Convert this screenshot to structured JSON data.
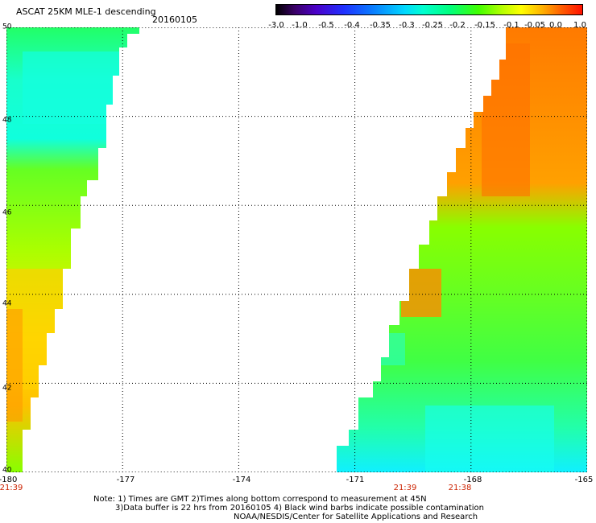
{
  "title": "ASCAT 25KM MLE-1 descending",
  "date": "20160105",
  "colorbar": {
    "ticks": [
      "-3.0",
      "-1.0",
      "-0.5",
      "-0.4",
      "-0.35",
      "-0.3",
      "-0.25",
      "-0.2",
      "-0.15",
      "-0.1",
      "-0.05",
      "0.0",
      "1.0"
    ],
    "stops": [
      "#000000",
      "#3a0066",
      "#4b00c8",
      "#2030ff",
      "#0a78ff",
      "#00d8ff",
      "#00ffd0",
      "#00ff7a",
      "#40ff00",
      "#b8ff00",
      "#ffff00",
      "#ffb000",
      "#ff6000",
      "#ff1000"
    ]
  },
  "map": {
    "lat_ticks": [
      "50",
      "48",
      "46",
      "44",
      "42",
      "40"
    ],
    "lon_ticks": [
      "-180",
      "-177",
      "-174",
      "-171",
      "-168",
      "-165"
    ],
    "lat_range": [
      40,
      50
    ],
    "lon_range": [
      -180,
      -165
    ],
    "grid": "dotted"
  },
  "times": [
    {
      "label": "21:39",
      "lon": -180
    },
    {
      "label": "21:39",
      "lon": -170.2
    },
    {
      "label": "21:38",
      "lon": -168.6
    }
  ],
  "notes": [
    "Note: 1) Times are GMT 2)Times along bottom correspond to measurement at 45N",
    "3)Data buffer is 22 hrs from 20160105 4) Black wind barbs indicate possible contamination",
    "NOAA/NESDIS/Center for Satellite Applications and Research"
  ]
}
